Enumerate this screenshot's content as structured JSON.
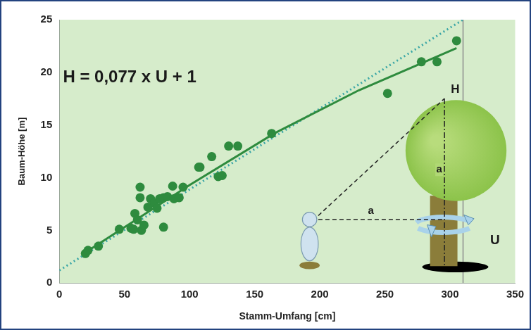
{
  "chart_data": {
    "type": "scatter",
    "x_label": "Stamm-Umfang [cm]",
    "y_label": "Baum-Höhe [m]",
    "annotations": [
      "H = 0,077 x U + 1"
    ],
    "diagram_labels": {
      "height": "H",
      "distance": "a",
      "height_part": "a",
      "circumference": "U"
    },
    "xlim": [
      0,
      350
    ],
    "xticks": [
      0,
      50,
      100,
      150,
      200,
      250,
      300,
      350
    ],
    "ylim": [
      0,
      25
    ],
    "yticks": [
      0,
      5,
      10,
      15,
      20,
      25
    ],
    "grid": false,
    "series": [
      {
        "type": "scatter",
        "color": "#2e8b3e",
        "marker": "circle",
        "x": [
          20,
          22,
          30,
          46,
          55,
          57,
          58,
          60,
          62,
          62,
          63,
          65,
          68,
          70,
          73,
          75,
          77,
          80,
          80,
          83,
          87,
          88,
          92,
          95,
          107,
          108,
          117,
          122,
          125,
          130,
          137,
          163,
          252,
          278,
          290,
          305
        ],
        "values": [
          2.8,
          3.1,
          3.5,
          5.1,
          5.2,
          5.1,
          6.6,
          6.0,
          8.1,
          9.1,
          5.0,
          5.5,
          7.2,
          8.0,
          7.6,
          7.1,
          8.0,
          5.3,
          8.1,
          8.2,
          9.2,
          8.0,
          8.1,
          9.1,
          11.0,
          11.0,
          12.0,
          10.1,
          10.2,
          13.0,
          13.0,
          14.2,
          18.0,
          21.0,
          21.0,
          23.0
        ]
      },
      {
        "type": "line",
        "color": "#2e8b3e",
        "line_style": "solid",
        "x": [
          20,
          60,
          100,
          165,
          230,
          305
        ],
        "values": [
          2.9,
          6.1,
          9.3,
          14.2,
          18.3,
          22.3
        ]
      },
      {
        "type": "line",
        "color": "#3aa6a6",
        "line_style": "dotted",
        "x": [
          0,
          310
        ],
        "values": [
          1.2,
          25
        ]
      },
      {
        "type": "line",
        "color": "#8c8c8c",
        "line_style": "solid",
        "x": [
          310,
          310
        ],
        "values": [
          0,
          25
        ]
      }
    ]
  }
}
